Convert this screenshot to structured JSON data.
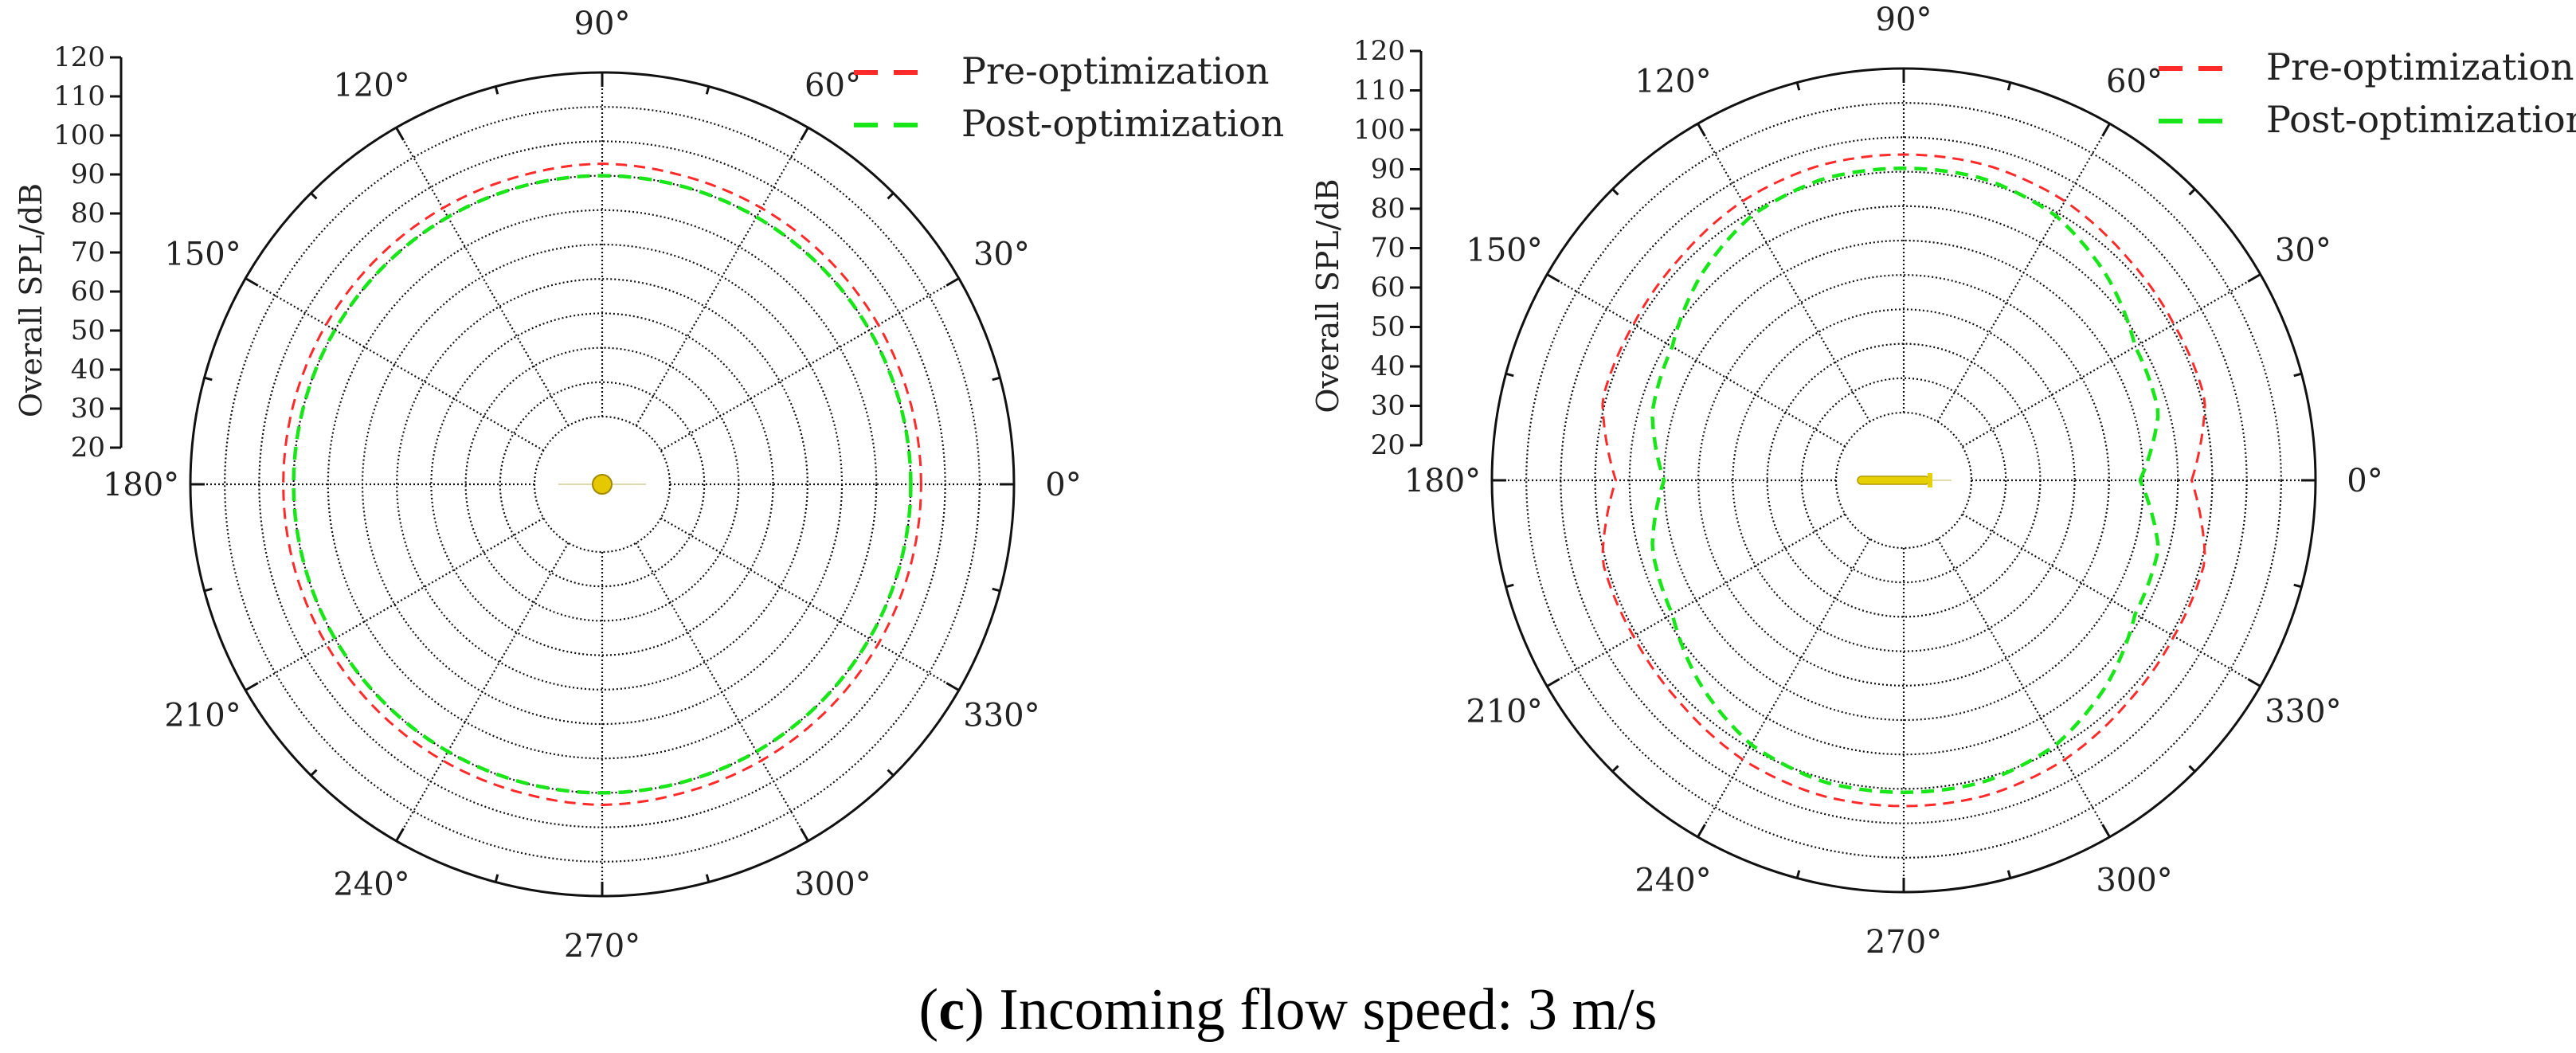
{
  "caption": {
    "label": "c",
    "text": " Incoming flow speed: 3 m/s"
  },
  "chart_data": [
    {
      "type": "polar-line",
      "title": "",
      "ylabel": "Overall SPL/dB",
      "radial_range": [
        20,
        120
      ],
      "radial_ticks": [
        "20",
        "30",
        "40",
        "50",
        "60",
        "70",
        "80",
        "90",
        "100",
        "110",
        "120"
      ],
      "angle_ticks": [
        "0°",
        "30°",
        "60°",
        "90°",
        "120°",
        "150°",
        "180°",
        "210°",
        "240°",
        "270°",
        "300°",
        "330°"
      ],
      "angles_deg": [
        0,
        15,
        30,
        45,
        60,
        75,
        90,
        105,
        120,
        135,
        150,
        165,
        180,
        195,
        210,
        225,
        240,
        255,
        270,
        285,
        300,
        315,
        330,
        345
      ],
      "legend_position": "top-right",
      "grid": true,
      "center_object": "sphere",
      "series": [
        {
          "name": "Pre-optimization",
          "color": "#ff2a2a",
          "values": [
            93,
            93,
            93,
            93,
            93,
            93,
            93.5,
            93,
            93,
            93,
            93,
            93,
            93,
            93,
            93,
            93,
            93,
            93,
            93.5,
            93,
            93,
            93,
            93,
            93
          ]
        },
        {
          "name": "Post-optimization",
          "color": "#19e619",
          "values": [
            90,
            90,
            90,
            90,
            90,
            90,
            90,
            90,
            90,
            90,
            90,
            90,
            90,
            90,
            90,
            90,
            90,
            90,
            90,
            90,
            90,
            90,
            90,
            90
          ]
        }
      ]
    },
    {
      "type": "polar-line",
      "title": "",
      "ylabel": "Overall SPL/dB",
      "radial_range": [
        20,
        120
      ],
      "radial_ticks": [
        "20",
        "30",
        "40",
        "50",
        "60",
        "70",
        "80",
        "90",
        "100",
        "110",
        "120"
      ],
      "angle_ticks": [
        "0°",
        "30°",
        "60°",
        "90°",
        "120°",
        "150°",
        "180°",
        "210°",
        "240°",
        "270°",
        "300°",
        "330°"
      ],
      "angles_deg": [
        0,
        15,
        30,
        45,
        60,
        75,
        90,
        105,
        120,
        135,
        150,
        165,
        180,
        195,
        210,
        225,
        240,
        255,
        270,
        285,
        300,
        315,
        330,
        345
      ],
      "legend_position": "top-right",
      "grid": true,
      "center_object": "rod",
      "series": [
        {
          "name": "Pre-optimization",
          "color": "#ff2a2a",
          "values": [
            84,
            91,
            91,
            92,
            94,
            95,
            95,
            95,
            94,
            92,
            91,
            91,
            84,
            91,
            91,
            92,
            94,
            95,
            95,
            95,
            94,
            92,
            91,
            91
          ]
        },
        {
          "name": "Post-optimization",
          "color": "#19e619",
          "values": [
            69,
            77,
            78,
            84,
            89,
            91,
            91,
            91,
            89,
            84,
            78,
            76,
            70,
            76,
            78,
            84,
            89,
            91,
            91,
            91,
            89,
            84,
            78,
            77
          ]
        }
      ]
    }
  ]
}
